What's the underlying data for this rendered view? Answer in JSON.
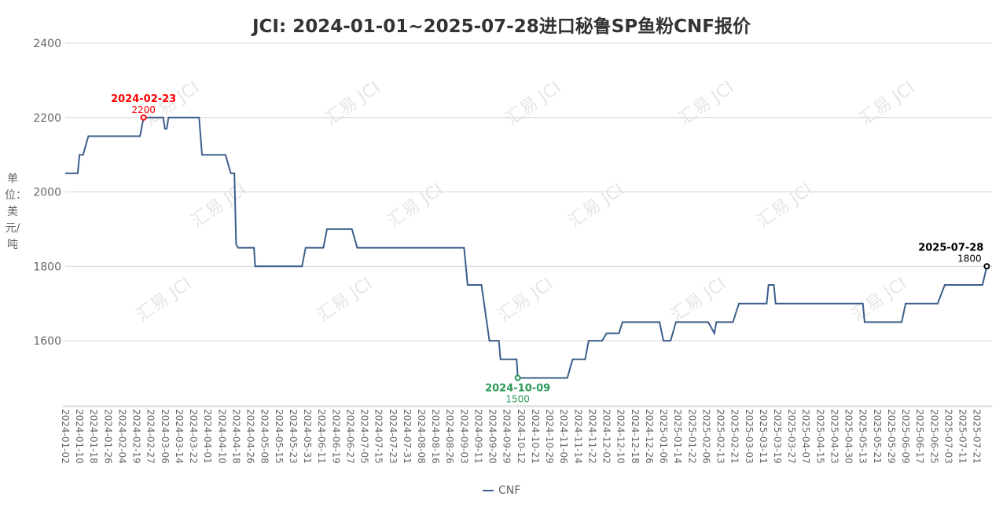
{
  "chart_data": {
    "type": "line",
    "title": "JCI: 2024-01-01~2025-07-28进口秘鲁SP鱼粉CNF报价",
    "ylabel": "单位：美元/吨",
    "xlabel": "",
    "ylim": [
      1425,
      2400
    ],
    "yticks": [
      1600,
      1800,
      2000,
      2200,
      2400
    ],
    "grid": "horizontal",
    "legend_position": "bottom",
    "line_color": "#3c5e8c",
    "xticks": [
      "2024-01-02",
      "2024-01-10",
      "2024-01-18",
      "2024-01-26",
      "2024-02-04",
      "2024-02-19",
      "2024-02-27",
      "2024-03-06",
      "2024-03-14",
      "2024-03-22",
      "2024-04-01",
      "2024-04-10",
      "2024-04-18",
      "2024-04-26",
      "2024-05-08",
      "2024-05-15",
      "2024-05-23",
      "2024-05-31",
      "2024-06-11",
      "2024-06-19",
      "2024-06-27",
      "2024-07-05",
      "2024-07-15",
      "2024-07-23",
      "2024-07-31",
      "2024-08-08",
      "2024-08-16",
      "2024-08-26",
      "2024-09-03",
      "2024-09-11",
      "2024-09-20",
      "2024-09-29",
      "2024-10-12",
      "2024-10-21",
      "2024-10-29",
      "2024-11-06",
      "2024-11-14",
      "2024-11-22",
      "2024-12-02",
      "2024-12-10",
      "2024-12-18",
      "2024-12-26",
      "2025-01-06",
      "2025-01-14",
      "2025-01-22",
      "2025-02-06",
      "2025-02-13",
      "2025-02-21",
      "2025-03-03",
      "2025-03-11",
      "2025-03-19",
      "2025-03-27",
      "2025-04-07",
      "2025-04-15",
      "2025-04-23",
      "2025-04-30",
      "2025-05-13",
      "2025-05-21",
      "2025-05-29",
      "2025-06-09",
      "2025-06-17",
      "2025-06-25",
      "2025-07-03",
      "2025-07-11",
      "2025-07-21"
    ],
    "series": [
      {
        "name": "CNF",
        "segments": [
          [
            "2024-01-02",
            "2024-01-09",
            2050
          ],
          [
            "2024-01-10",
            "2024-01-12",
            2100
          ],
          [
            "2024-01-15",
            "2024-02-21",
            2150
          ],
          [
            "2024-02-23",
            "2024-03-05",
            2200
          ],
          [
            "2024-03-06",
            "2024-03-07",
            2170
          ],
          [
            "2024-03-08",
            "2024-03-26",
            2200
          ],
          [
            "2024-03-28",
            "2024-04-12",
            2100
          ],
          [
            "2024-04-15",
            "2024-04-17",
            2050
          ],
          [
            "2024-04-18",
            "2024-04-18",
            1860
          ],
          [
            "2024-04-19",
            "2024-04-29",
            1850
          ],
          [
            "2024-04-30",
            "2024-05-28",
            1800
          ],
          [
            "2024-05-30",
            "2024-06-12",
            1850
          ],
          [
            "2024-06-14",
            "2024-06-28",
            1900
          ],
          [
            "2024-07-01",
            "2024-09-03",
            1850
          ],
          [
            "2024-09-05",
            "2024-09-13",
            1750
          ],
          [
            "2024-09-18",
            "2024-09-24",
            1600
          ],
          [
            "2024-09-25",
            "2024-10-08",
            1550
          ],
          [
            "2024-10-09",
            "2024-11-08",
            1500
          ],
          [
            "2024-11-11",
            "2024-11-18",
            1550
          ],
          [
            "2024-11-20",
            "2024-11-29",
            1600
          ],
          [
            "2024-12-02",
            "2024-12-09",
            1620
          ],
          [
            "2024-12-11",
            "2025-01-03",
            1650
          ],
          [
            "2025-01-06",
            "2025-01-10",
            1600
          ],
          [
            "2025-01-13",
            "2025-02-07",
            1650
          ],
          [
            "2025-02-10",
            "2025-02-10",
            1620
          ],
          [
            "2025-02-11",
            "2025-02-20",
            1650
          ],
          [
            "2025-02-24",
            "2025-03-13",
            1700
          ],
          [
            "2025-03-14",
            "2025-03-17",
            1750
          ],
          [
            "2025-03-18",
            "2025-05-13",
            1700
          ],
          [
            "2025-05-14",
            "2025-06-06",
            1650
          ],
          [
            "2025-06-09",
            "2025-06-27",
            1700
          ],
          [
            "2025-07-01",
            "2025-07-25",
            1750
          ],
          [
            "2025-07-28",
            "2025-07-28",
            1800
          ]
        ]
      }
    ],
    "annotations": [
      {
        "date": "2024-02-23",
        "value": 2200,
        "label_date": "2024-02-23",
        "label_value": "2200",
        "color": "#ff0000",
        "kind": "max"
      },
      {
        "date": "2024-10-09",
        "value": 1500,
        "label_date": "2024-10-09",
        "label_value": "1500",
        "color": "#2e9a5a",
        "kind": "min"
      },
      {
        "date": "2025-07-28",
        "value": 1800,
        "label_date": "2025-07-28",
        "label_value": "1800",
        "color": "#000000",
        "kind": "latest"
      }
    ]
  },
  "legend": {
    "label": "CNF"
  },
  "watermark": "汇易 JCI"
}
